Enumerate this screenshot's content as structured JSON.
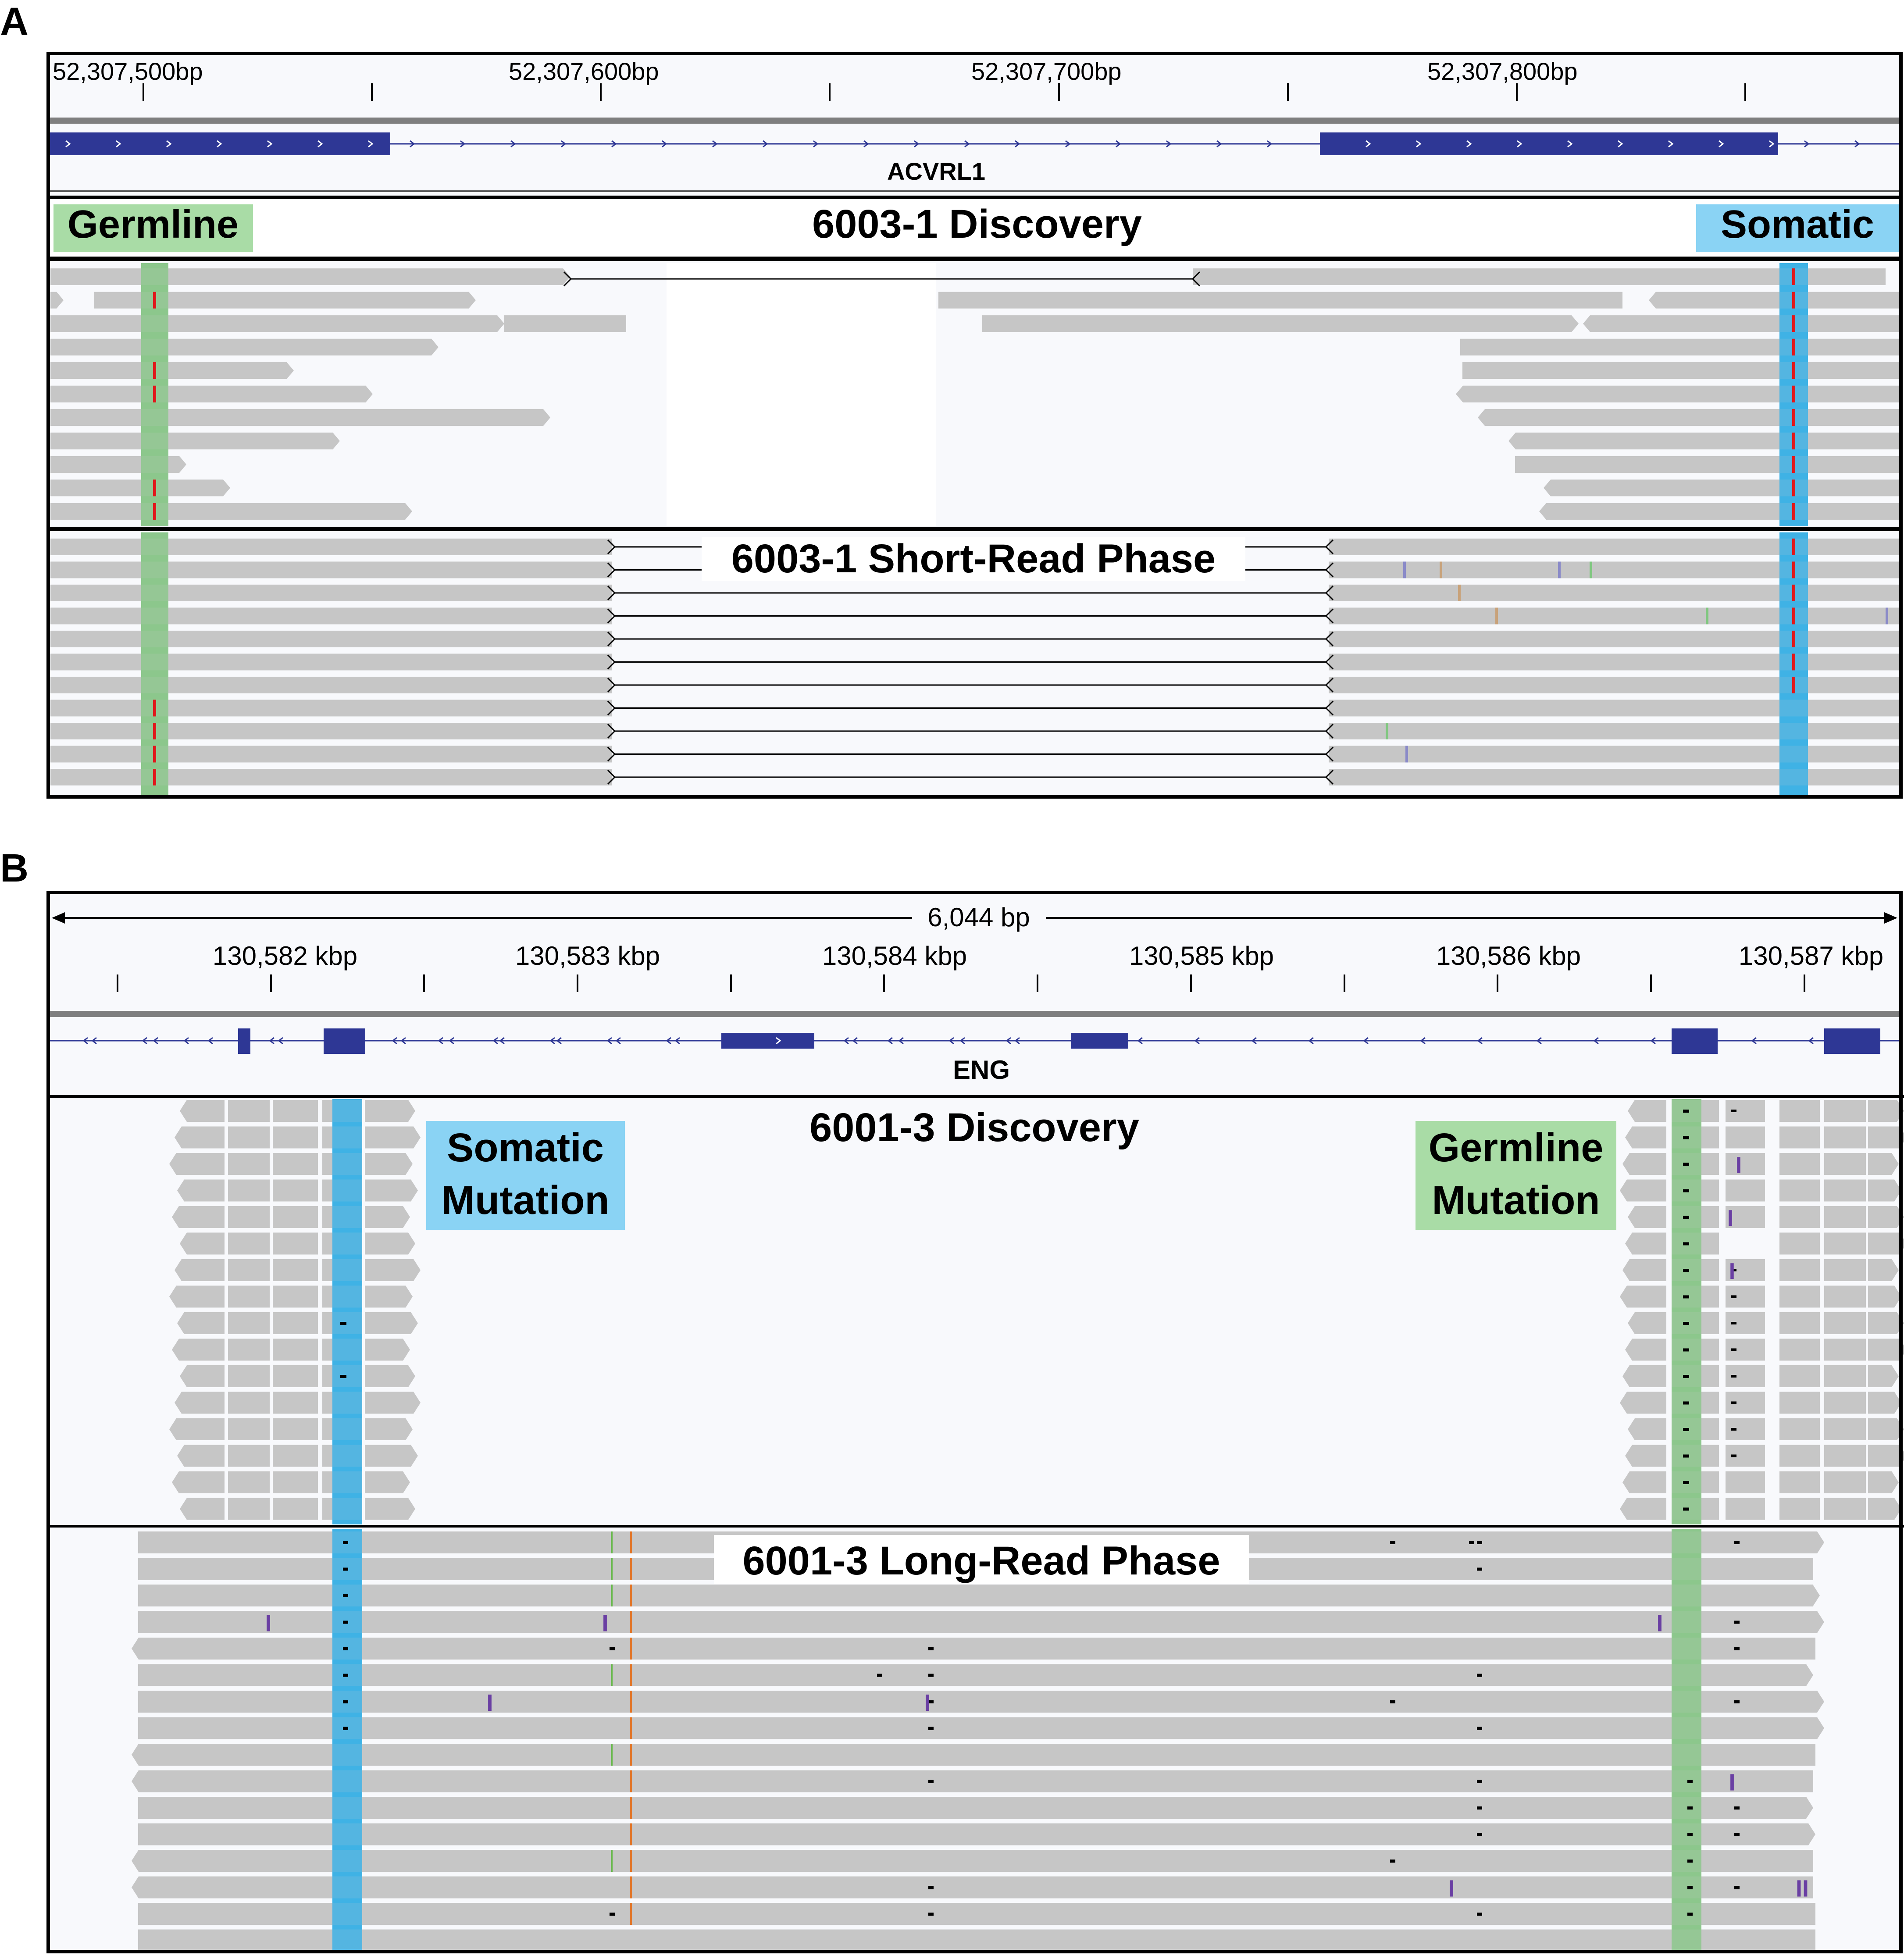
{
  "colors": {
    "read_gray": "#c6c6c6",
    "track_bg": "#f8f9fc",
    "gene_blue": "#2e3795",
    "germline_green": "#8cc78c",
    "somatic_blue": "#3fb2e5",
    "label_green": "#a9dca6",
    "label_blue": "#8ad3f4",
    "mismatch_red": "#e0191c",
    "insertion_purple": "#6a3fa3",
    "frame_black": "#000000"
  },
  "panel_a": {
    "panel_letter": "A",
    "ruler_ticks": [
      "52,307,500bp",
      "52,307,600bp",
      "52,307,700bp",
      "52,307,800bp"
    ],
    "gene_name": "ACVRL1",
    "discovery_title": "6003-1 Discovery",
    "germline_label": "Germline",
    "somatic_label": "Somatic",
    "phase_title": "6003-1 Short-Read Phase"
  },
  "panel_b": {
    "panel_letter": "B",
    "span_label": "6,044 bp",
    "ruler_ticks": [
      "130,582 kbp",
      "130,583 kbp",
      "130,584 kbp",
      "130,585 kbp",
      "130,586 kbp",
      "130,587 kbp"
    ],
    "gene_name": "ENG",
    "discovery_title": "6001-3 Discovery",
    "somatic_label_line1": "Somatic",
    "somatic_label_line2": "Mutation",
    "germline_label_line1": "Germline",
    "germline_label_line2": "Mutation",
    "phase_title": "6001-3 Long-Read Phase",
    "insertion_glyph": "I",
    "double_insertion_glyph": "II"
  }
}
